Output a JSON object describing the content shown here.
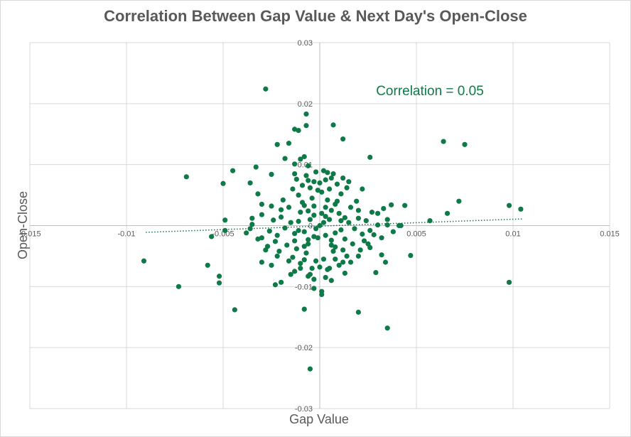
{
  "chart_data": {
    "type": "scatter",
    "title": "Correlation Between Gap Value & Next Day's Open-Close",
    "xlabel": "Gap Value",
    "ylabel": "Open-Close",
    "xlim": [
      -0.015,
      0.015
    ],
    "ylim": [
      -0.03,
      0.03
    ],
    "x_ticks": [
      -0.015,
      -0.01,
      -0.005,
      0,
      0.005,
      0.01,
      0.015
    ],
    "x_tick_labels": [
      "-0.015",
      "-0.01",
      "-0.005",
      "0",
      "0.005",
      "0.01",
      "0.015"
    ],
    "y_ticks": [
      -0.03,
      -0.02,
      -0.01,
      0,
      0.01,
      0.02,
      0.03
    ],
    "y_tick_labels": [
      "-0.03",
      "-0.02",
      "-0.01",
      "0",
      "0.01",
      "0.02",
      "0.03"
    ],
    "grid": true,
    "annotation": "Correlation = 0.05",
    "marker_color": "#0e7a48",
    "trendline": {
      "type": "linear",
      "style": "dotted",
      "x": [
        -0.009,
        0.0105
      ],
      "y": [
        -0.0011,
        0.0011
      ]
    },
    "points": [
      [
        -0.0028,
        0.0224
      ],
      [
        -0.0007,
        0.0183
      ],
      [
        -0.0007,
        0.0164
      ],
      [
        0.0007,
        0.0165
      ],
      [
        -0.0013,
        0.0158
      ],
      [
        -0.0011,
        0.0156
      ],
      [
        0.0012,
        0.0142
      ],
      [
        0.0064,
        0.0138
      ],
      [
        0.0075,
        0.0133
      ],
      [
        -0.0022,
        0.0133
      ],
      [
        -0.0016,
        0.0135
      ],
      [
        -0.0008,
        0.0113
      ],
      [
        -0.001,
        0.0109
      ],
      [
        0.0026,
        0.0112
      ],
      [
        -0.0018,
        0.011
      ],
      [
        -0.0033,
        0.0096
      ],
      [
        -0.0045,
        0.009
      ],
      [
        -0.0069,
        0.008
      ],
      [
        -0.005,
        0.0069
      ],
      [
        -0.0036,
        0.007
      ],
      [
        -0.0013,
        0.0101
      ],
      [
        -0.0006,
        0.0098
      ],
      [
        0.0004,
        0.0087
      ],
      [
        -0.0013,
        0.0085
      ],
      [
        -0.0025,
        0.0084
      ],
      [
        0.0015,
        0.0072
      ],
      [
        0.0022,
        0.006
      ],
      [
        0.0044,
        0.0033
      ],
      [
        0.0072,
        0.004
      ],
      [
        0.0066,
        0.002
      ],
      [
        0.0057,
        0.0008
      ],
      [
        0.0098,
        0.0033
      ],
      [
        0.0104,
        0.0027
      ],
      [
        0.0098,
        -0.0093
      ],
      [
        -0.0091,
        -0.0058
      ],
      [
        -0.0073,
        -0.01
      ],
      [
        -0.0058,
        -0.0065
      ],
      [
        -0.0052,
        -0.0083
      ],
      [
        -0.0052,
        -0.0094
      ],
      [
        -0.0044,
        -0.0138
      ],
      [
        -0.0056,
        -0.0018
      ],
      [
        -0.0049,
        -0.0008
      ],
      [
        -0.0049,
        0.0009
      ],
      [
        -0.0036,
        -0.0005
      ],
      [
        -0.0035,
        0.0002
      ],
      [
        -0.003,
        -0.006
      ],
      [
        -0.0025,
        -0.0065
      ],
      [
        -0.0023,
        -0.0097
      ],
      [
        -0.002,
        -0.0093
      ],
      [
        -0.0008,
        -0.0137
      ],
      [
        -0.0005,
        -0.0235
      ],
      [
        0.0001,
        -0.0113
      ],
      [
        0.0001,
        -0.0108
      ],
      [
        -0.0003,
        -0.0103
      ],
      [
        0.002,
        -0.0142
      ],
      [
        0.0035,
        -0.0168
      ],
      [
        0.0029,
        -0.0077
      ],
      [
        0.0034,
        -0.006
      ],
      [
        0.0032,
        -0.0048
      ],
      [
        0.0047,
        -0.0049
      ],
      [
        0.0037,
        0.0034
      ],
      [
        0.0027,
        0.0022
      ],
      [
        0.0041,
        0.0
      ],
      [
        0.003,
        0.0001
      ],
      [
        0.0035,
        0.0001
      ],
      [
        0.0042,
        0.0
      ],
      [
        -0.0032,
        0.0052
      ],
      [
        -0.003,
        0.0035
      ],
      [
        -0.001,
        -0.007
      ],
      [
        -0.0015,
        -0.008
      ],
      [
        -0.0005,
        -0.008
      ],
      [
        0.0005,
        -0.007
      ],
      [
        0.0012,
        -0.006
      ],
      [
        0.002,
        -0.005
      ],
      [
        -0.0022,
        -0.005
      ],
      [
        -0.0028,
        -0.004
      ],
      [
        -0.003,
        -0.002
      ],
      [
        0.0025,
        -0.003
      ],
      [
        0.0028,
        -0.0015
      ],
      [
        0.0,
        0.0
      ],
      [
        0.0002,
        0.0005
      ],
      [
        -0.0002,
        -0.0005
      ],
      [
        0.0005,
        0.001
      ],
      [
        -0.0005,
        0.001
      ],
      [
        0.0008,
        -0.0012
      ],
      [
        -0.0008,
        -0.001
      ],
      [
        0.001,
        0.002
      ],
      [
        -0.001,
        0.0022
      ],
      [
        0.0013,
        -0.0022
      ],
      [
        -0.0013,
        -0.0025
      ],
      [
        0.0003,
        0.003
      ],
      [
        -0.0003,
        0.0032
      ],
      [
        0.0006,
        -0.0032
      ],
      [
        -0.0006,
        -0.003
      ],
      [
        0.0015,
        0.0005
      ],
      [
        -0.0015,
        0.0005
      ],
      [
        0.0018,
        -0.0005
      ],
      [
        -0.0018,
        -0.0004
      ],
      [
        0.002,
        0.0012
      ],
      [
        -0.002,
        0.0014
      ],
      [
        0.0022,
        -0.0014
      ],
      [
        -0.0022,
        -0.0016
      ],
      [
        0.0004,
        0.0042
      ],
      [
        -0.0004,
        0.0045
      ],
      [
        0.0009,
        0.004
      ],
      [
        -0.0009,
        0.0038
      ],
      [
        0.0007,
        -0.0042
      ],
      [
        -0.0007,
        -0.0045
      ],
      [
        0.0012,
        -0.004
      ],
      [
        -0.0012,
        -0.0038
      ],
      [
        0.0016,
        0.003
      ],
      [
        -0.0016,
        0.003
      ],
      [
        0.0017,
        -0.003
      ],
      [
        -0.0017,
        -0.0032
      ],
      [
        0.0001,
        0.0055
      ],
      [
        -0.0001,
        0.0058
      ],
      [
        0.0005,
        0.006
      ],
      [
        -0.0005,
        0.0062
      ],
      [
        0.0002,
        -0.0055
      ],
      [
        -0.0002,
        -0.0058
      ],
      [
        0.0008,
        -0.0055
      ],
      [
        -0.0008,
        -0.0056
      ],
      [
        0.0011,
        0.0052
      ],
      [
        -0.0011,
        0.005
      ],
      [
        0.0014,
        -0.005
      ],
      [
        -0.0014,
        -0.0052
      ],
      [
        0.0024,
        0.0008
      ],
      [
        -0.0024,
        0.0009
      ],
      [
        0.0026,
        -0.0008
      ],
      [
        -0.0026,
        -0.0009
      ],
      [
        0.003,
        0.002
      ],
      [
        -0.003,
        0.0018
      ],
      [
        0.0032,
        -0.002
      ],
      [
        -0.0032,
        -0.0022
      ],
      [
        0.0019,
        0.004
      ],
      [
        -0.0019,
        0.0042
      ],
      [
        0.0021,
        -0.004
      ],
      [
        -0.0021,
        -0.0042
      ],
      [
        0.0003,
        0.0015
      ],
      [
        -0.0003,
        0.0017
      ],
      [
        0.0006,
        0.0025
      ],
      [
        -0.0006,
        0.0024
      ],
      [
        0.0003,
        -0.0016
      ],
      [
        -0.0003,
        -0.0018
      ],
      [
        0.0006,
        -0.0024
      ],
      [
        -0.0006,
        -0.0023
      ],
      [
        0.0011,
        0.0008
      ],
      [
        -0.0011,
        0.0007
      ],
      [
        0.0011,
        -0.0007
      ],
      [
        -0.0011,
        -0.0008
      ],
      [
        0.0,
        0.007
      ],
      [
        0.0003,
        0.0075
      ],
      [
        -0.0003,
        0.0072
      ],
      [
        0.0006,
        0.0078
      ],
      [
        -0.0006,
        0.0074
      ],
      [
        0.0,
        -0.0068
      ],
      [
        0.0004,
        -0.0072
      ],
      [
        -0.0004,
        -0.007
      ],
      [
        0.0009,
        0.0068
      ],
      [
        -0.0009,
        0.0066
      ],
      [
        0.001,
        -0.0065
      ],
      [
        -0.001,
        -0.0062
      ],
      [
        0.0035,
        0.001
      ],
      [
        -0.0035,
        0.0012
      ],
      [
        0.0038,
        -0.001
      ],
      [
        -0.0038,
        -0.0012
      ],
      [
        0.0033,
        0.0028
      ],
      [
        -0.0025,
        0.0032
      ],
      [
        0.0026,
        -0.0036
      ],
      [
        -0.0027,
        -0.0034
      ],
      [
        0.0014,
        0.0062
      ],
      [
        -0.0014,
        0.006
      ],
      [
        0.0016,
        -0.006
      ],
      [
        -0.0016,
        -0.0058
      ],
      [
        0.0002,
        0.009
      ],
      [
        -0.0002,
        0.0088
      ],
      [
        0.0007,
        0.0085
      ],
      [
        -0.0007,
        0.0082
      ],
      [
        0.0003,
        -0.0085
      ],
      [
        -0.0003,
        -0.0088
      ],
      [
        0.0006,
        -0.009
      ],
      [
        -0.0006,
        -0.0083
      ],
      [
        0.0012,
        0.0078
      ],
      [
        -0.0012,
        0.0076
      ],
      [
        0.0013,
        -0.0078
      ],
      [
        -0.0013,
        -0.0075
      ],
      [
        0.002,
        0.0025
      ],
      [
        -0.002,
        0.0026
      ],
      [
        0.0023,
        -0.0025
      ],
      [
        -0.0023,
        -0.0026
      ],
      [
        0.0008,
        0.0035
      ],
      [
        -0.0008,
        0.0033
      ],
      [
        0.0008,
        -0.0035
      ],
      [
        -0.0008,
        -0.0034
      ],
      [
        0.0001,
        0.002
      ],
      [
        -0.0001,
        -0.002
      ],
      [
        0.0013,
        0.0013
      ],
      [
        -0.0013,
        -0.0013
      ]
    ]
  }
}
